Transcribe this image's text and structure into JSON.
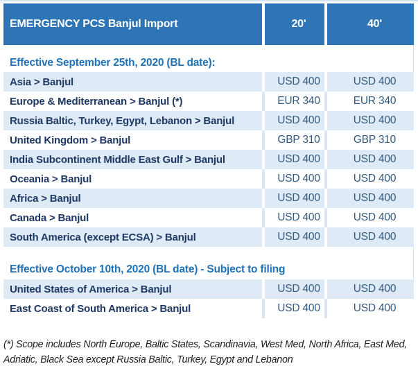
{
  "table": {
    "title": "EMERGENCY PCS Banjul Import",
    "columns": [
      "20'",
      "40'"
    ],
    "sections": [
      {
        "heading": "Effective September 25th, 2020 (BL date):",
        "rows": [
          {
            "route": "Asia > Banjul",
            "rate_20": "USD 400",
            "rate_40": "USD 400"
          },
          {
            "route": "Europe & Mediterranean > Banjul (*)",
            "rate_20": "EUR 340",
            "rate_40": "EUR 340"
          },
          {
            "route": "Russia Baltic, Turkey, Egypt, Lebanon > Banjul",
            "rate_20": "USD 400",
            "rate_40": "USD 400"
          },
          {
            "route": "United Kingdom > Banjul",
            "rate_20": "GBP 310",
            "rate_40": "GBP 310"
          },
          {
            "route": "India Subcontinent Middle East Gulf > Banjul",
            "rate_20": "USD 400",
            "rate_40": "USD 400"
          },
          {
            "route": "Oceania > Banjul",
            "rate_20": "USD 400",
            "rate_40": "USD 400"
          },
          {
            "route": "Africa > Banjul",
            "rate_20": "USD 400",
            "rate_40": "USD 400"
          },
          {
            "route": "Canada > Banjul",
            "rate_20": "USD 400",
            "rate_40": "USD 400"
          },
          {
            "route": "South America (except ECSA) > Banjul",
            "rate_20": "USD 400",
            "rate_40": "USD 400"
          }
        ]
      },
      {
        "heading": "Effective October 10th, 2020 (BL date) - Subject to filing",
        "rows": [
          {
            "route": "United States of America > Banjul",
            "rate_20": "USD 400",
            "rate_40": "USD 400"
          },
          {
            "route": "East Coast of South America > Banjul",
            "rate_20": "USD 400",
            "rate_40": "USD 400"
          }
        ]
      }
    ]
  },
  "footnote": "(*) Scope includes North Europe, Baltic States, Scandinavia, West Med, North Africa, East Med, Adriatic, Black Sea except Russia Baltic, Turkey, Egypt and Lebanon",
  "colors": {
    "header_bg": "#2E75B6",
    "header_text": "#FFFFFF",
    "shaded_row": "#DEEBF7",
    "separator_on_white": "#D9E7F5",
    "label_text": "#1F3864",
    "value_text": "#33597F",
    "heading_text": "#1F72B8",
    "hairline": "#D3E2F0"
  }
}
